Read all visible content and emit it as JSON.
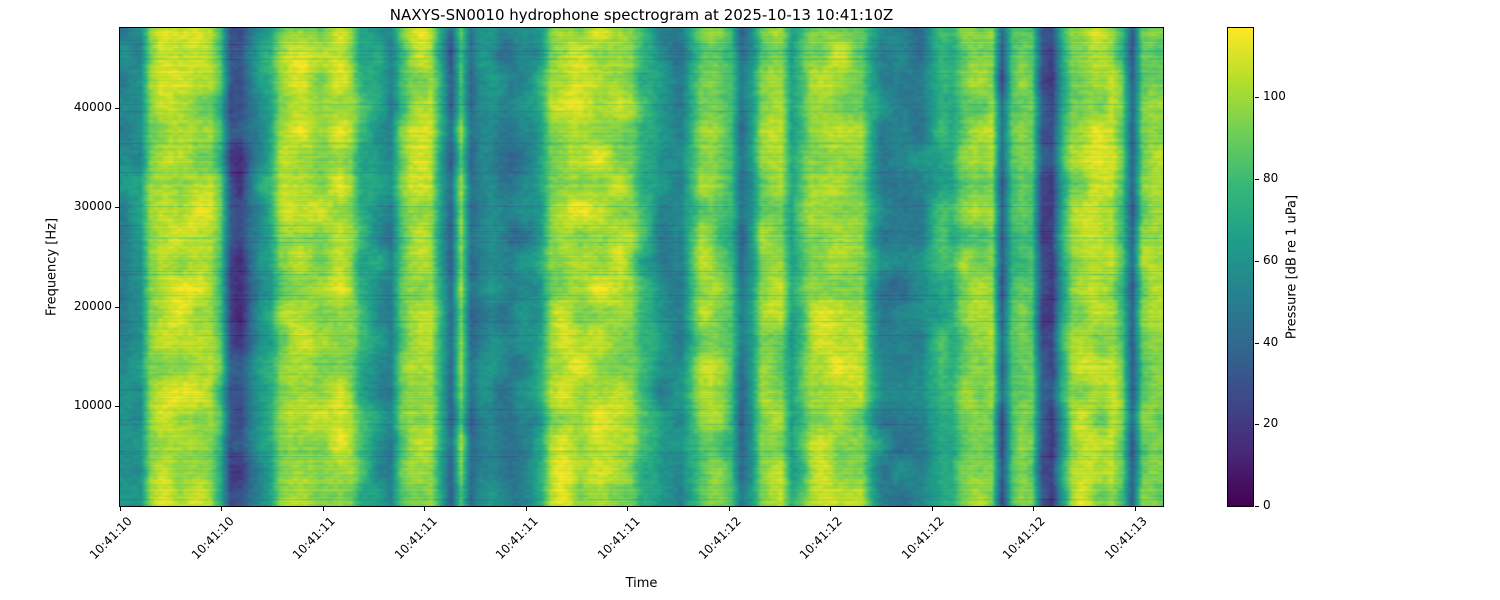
{
  "chart_data": {
    "type": "heatmap",
    "title": "NAXYS-SN0010 hydrophone spectrogram at 2025-10-13 10:41:10Z",
    "xlabel": "Time",
    "ylabel": "Frequency [Hz]",
    "colorbar_label": "Pressure [dB re 1 uPa]",
    "colormap": "viridis",
    "legend_position": "right-colorbar",
    "grid": false,
    "x_tick_labels": [
      "10:41:10",
      "10:41:10",
      "10:41:11",
      "10:41:11",
      "10:41:11",
      "10:41:11",
      "10:41:12",
      "10:41:12",
      "10:41:12",
      "10:41:12",
      "10:41:13"
    ],
    "y_ticks": [
      10000,
      20000,
      30000,
      40000
    ],
    "y_range_hz": [
      0,
      48000
    ],
    "colorbar_ticks": [
      0,
      20,
      40,
      60,
      80,
      100
    ],
    "value_range_db": [
      0,
      117
    ],
    "column_profile_db": [
      55,
      58,
      60,
      95,
      102,
      105,
      103,
      104,
      102,
      100,
      80,
      28,
      24,
      45,
      62,
      70,
      95,
      102,
      104,
      103,
      100,
      102,
      104,
      98,
      75,
      68,
      60,
      52,
      85,
      100,
      103,
      102,
      70,
      38,
      92,
      42,
      55,
      58,
      50,
      46,
      52,
      57,
      70,
      98,
      104,
      106,
      103,
      105,
      104,
      102,
      100,
      96,
      78,
      70,
      58,
      54,
      52,
      75,
      95,
      97,
      90,
      78,
      40,
      60,
      95,
      98,
      96,
      65,
      80,
      100,
      103,
      104,
      102,
      100,
      98,
      72,
      55,
      50,
      48,
      50,
      52,
      65,
      75,
      72,
      90,
      95,
      93,
      96,
      35,
      80,
      88,
      85,
      30,
      24,
      70,
      98,
      102,
      104,
      100,
      103,
      85,
      36,
      90,
      97,
      95
    ]
  }
}
